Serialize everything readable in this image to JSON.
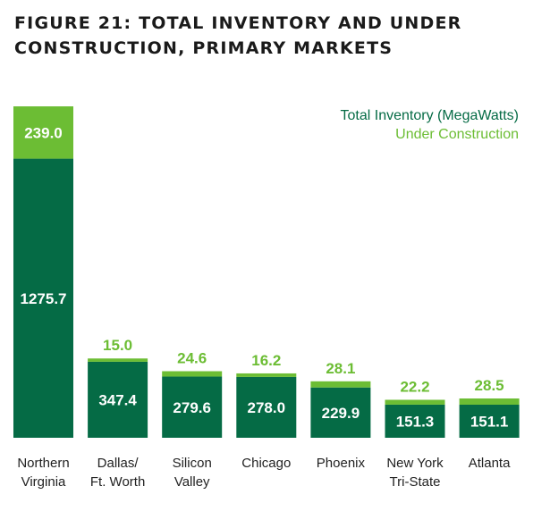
{
  "title": "FIGURE 21: TOTAL INVENTORY AND UNDER CONSTRUCTION, PRIMARY MARKETS",
  "colors": {
    "inventory": "#056b45",
    "construction": "#6cbd34",
    "title": "#1a1a1a"
  },
  "chart_data": {
    "type": "bar",
    "stacked": true,
    "title": "FIGURE 21: TOTAL INVENTORY AND UNDER CONSTRUCTION, PRIMARY MARKETS",
    "xlabel": "",
    "ylabel": "",
    "grid": false,
    "legend_position": "top-right",
    "categories": [
      [
        "Northern",
        "Virginia"
      ],
      [
        "Dallas/",
        "Ft. Worth"
      ],
      [
        "Silicon",
        "Valley"
      ],
      [
        "Chicago"
      ],
      [
        "Phoenix"
      ],
      [
        "New York",
        "Tri-State"
      ],
      [
        "Atlanta"
      ]
    ],
    "series": [
      {
        "name": "Total Inventory (MegaWatts)",
        "color": "#056b45",
        "values": [
          1275.7,
          347.4,
          279.6,
          278.0,
          229.9,
          151.3,
          151.1
        ],
        "labels": [
          "1275.7",
          "347.4",
          "279.6",
          "278.0",
          "229.9",
          "151.3",
          "151.1"
        ]
      },
      {
        "name": "Under Construction",
        "color": "#6cbd34",
        "values": [
          239.0,
          15.0,
          24.6,
          16.2,
          28.1,
          22.2,
          28.5
        ],
        "labels": [
          "239.0",
          "15.0",
          "24.6",
          "16.2",
          "28.1",
          "22.2",
          "28.5"
        ]
      }
    ]
  }
}
